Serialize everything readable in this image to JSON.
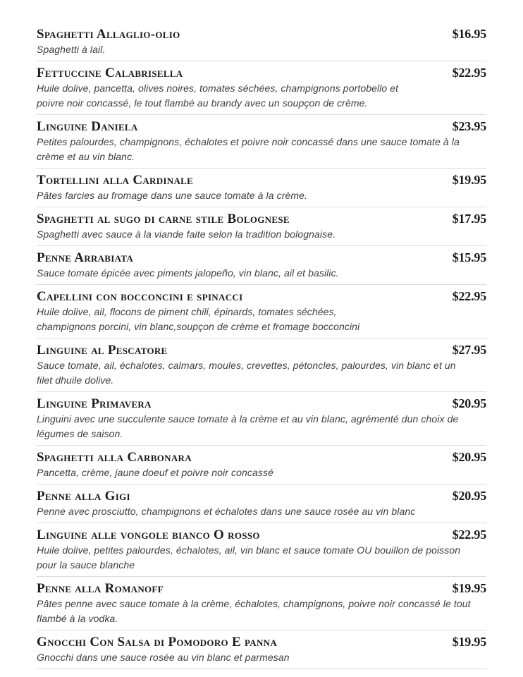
{
  "page": {
    "background": "#ffffff"
  },
  "colors": {
    "title": "#1b1b1b",
    "price": "#1b1b1b",
    "description": "#3d3d3d",
    "divider": "#dcdcdc"
  },
  "menu": {
    "items": [
      {
        "name": "Spaghetti Allaglio-olio",
        "price": "$16.95",
        "description": "Spaghetti à lail."
      },
      {
        "name": "Fettuccine Calabrisella",
        "price": "$22.95",
        "description": "Huile dolive, pancetta, olives noires, tomates séchées, champignons portobello et\npoivre noir concassé, le tout flambé au brandy avec un soupçon de crème."
      },
      {
        "name": "Linguine Daniela",
        "price": "$23.95",
        "description": "Petites palourdes, champignons, échalotes et poivre noir concassé dans une sauce tomate à la\ncrème et au vin blanc."
      },
      {
        "name": "Tortellini alla Cardinale",
        "price": "$19.95",
        "description": "Pâtes farcies au fromage dans une sauce tomate à la crème."
      },
      {
        "name": "Spaghetti al sugo di carne stile Bolognese",
        "price": "$17.95",
        "description": "Spaghetti avec sauce à la viande faite selon la tradition bolognaise."
      },
      {
        "name": "Penne Arrabiata",
        "price": "$15.95",
        "description": "Sauce tomate épicée avec piments jalopeño, vin blanc, ail et basilic."
      },
      {
        "name": "Capellini con bocconcini e spinacci",
        "price": "$22.95",
        "description": "Huile dolive, ail, flocons de piment chili, épinards, tomates séchées,\nchampignons porcini, vin blanc,soupçon de crème et fromage bocconcini"
      },
      {
        "name": "Linguine al Pescatore",
        "price": "$27.95",
        "description": "Sauce tomate, ail, échalotes, calmars, moules, crevettes, pétoncles, palourdes, vin blanc et un\nfilet dhuile dolive."
      },
      {
        "name": "Linguine Primavera",
        "price": "$20.95",
        "description": "Linguini avec une succulente sauce tomate à la crème et au vin blanc, agrémenté dun choix de\nlégumes de saison."
      },
      {
        "name": "Spaghetti alla Carbonara",
        "price": "$20.95",
        "description": "Pancetta, crème, jaune doeuf et poivre noir concassé"
      },
      {
        "name": "Penne alla Gigi",
        "price": "$20.95",
        "description": "Penne avec prosciutto, champignons et échalotes dans une sauce rosée au vin blanc"
      },
      {
        "name": "Linguine alle vongole bianco O rosso",
        "price": "$22.95",
        "description": "Huile dolive, petites palourdes, échalotes, ail, vin blanc et sauce tomate OU bouillon de poisson\npour la sauce blanche"
      },
      {
        "name": "Penne alla Romanoff",
        "price": "$19.95",
        "description": "Pâtes penne avec sauce tomate à la crème, échalotes, champignons, poivre noir concassé le tout\nflambé à la vodka."
      },
      {
        "name": "Gnocchi Con Salsa di Pomodoro E panna",
        "price": "$19.95",
        "description": "Gnocchi dans une sauce rosée au vin blanc et parmesan"
      }
    ]
  }
}
